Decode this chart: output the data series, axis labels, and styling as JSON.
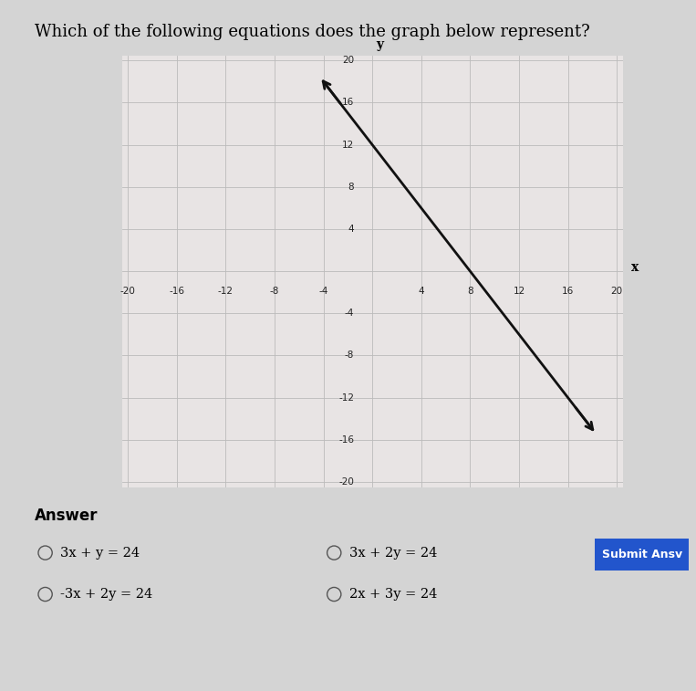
{
  "title": "Which of the following equations does the graph below represent?",
  "title_fontsize": 13,
  "x_intercept": 8,
  "y_intercept": 12,
  "xlim": [
    -20,
    20
  ],
  "ylim": [
    -20,
    20
  ],
  "xticks": [
    -20,
    -16,
    -12,
    -8,
    -4,
    0,
    4,
    8,
    12,
    16,
    20
  ],
  "yticks": [
    -20,
    -16,
    -12,
    -8,
    -4,
    0,
    4,
    8,
    12,
    16,
    20
  ],
  "grid_color": "#bbbbbb",
  "line_color": "#111111",
  "line_width": 2.0,
  "page_bg_color": "#d4d4d4",
  "content_bg_color": "#f0eeee",
  "plot_bg_color": "#e8e4e4",
  "answer_label": "Answer",
  "options_col1": [
    "3x + y = 24",
    "-3x + 2y = 24"
  ],
  "options_col2": [
    "3x + 2y = 24",
    "2x + 3y = 24"
  ],
  "submit_button_text": "Submit Ansv",
  "submit_button_color": "#2255cc",
  "line_x_start": -4,
  "line_x_end": 18,
  "line_y_start": 18,
  "line_y_end": -15
}
